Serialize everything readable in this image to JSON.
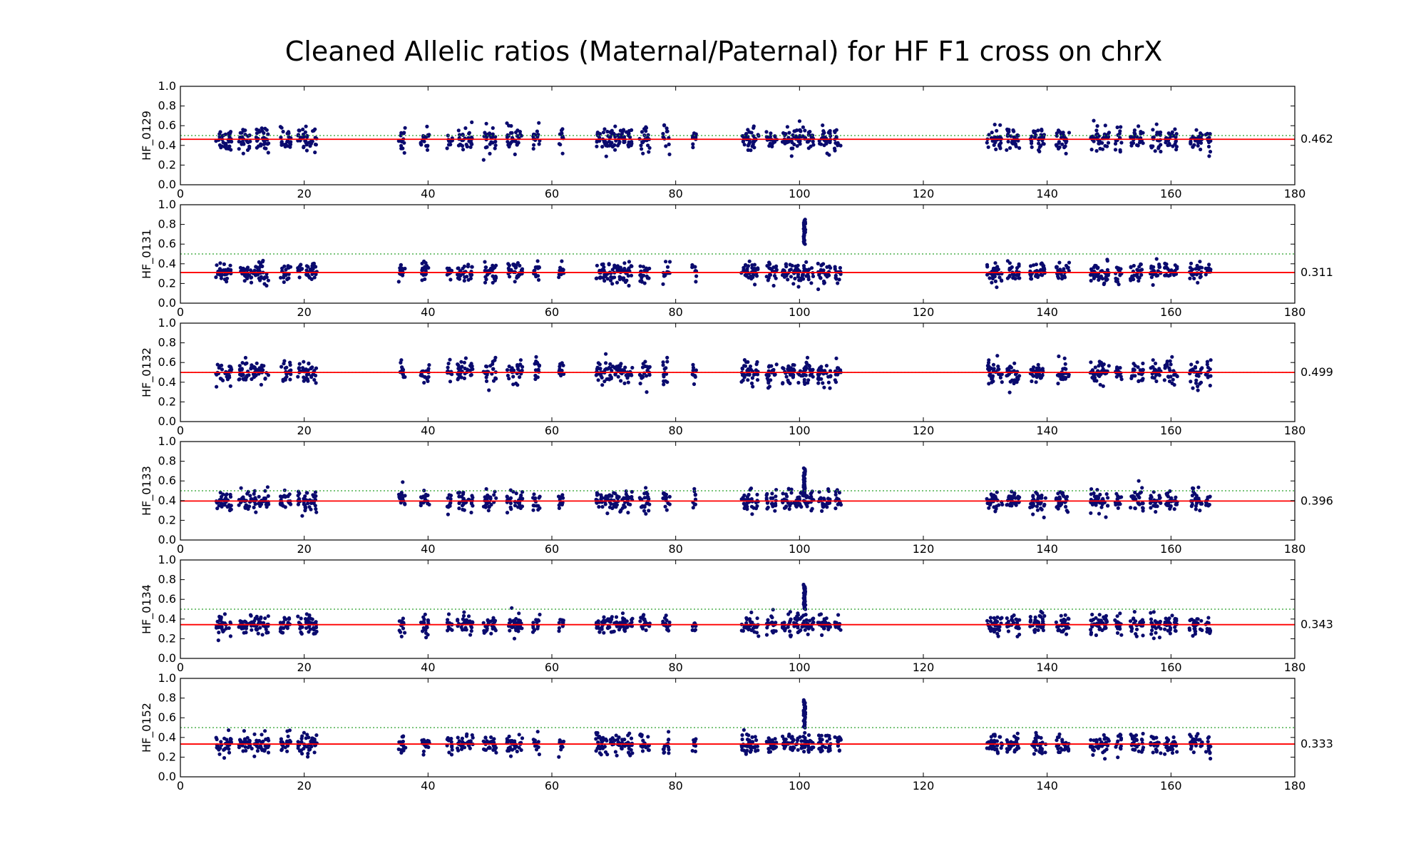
{
  "chart_data": {
    "type": "scatter",
    "title": "Cleaned Allelic ratios (Maternal/Paternal) for HF F1 cross on chrX",
    "xlim": [
      0,
      180
    ],
    "ylim": [
      0.0,
      1.0
    ],
    "xticks": [
      "0",
      "20",
      "40",
      "60",
      "80",
      "100",
      "120",
      "140",
      "160",
      "180"
    ],
    "yticks": [
      "0.0",
      "0.2",
      "0.4",
      "0.6",
      "0.8",
      "1.0"
    ],
    "reference_line": 0.5,
    "colors": {
      "points": "#0a0a6e",
      "mean_line": "#ff0000",
      "reference_line": "#2ca02c",
      "axes": "#000000"
    },
    "clusters": [
      {
        "x": 7,
        "w": 1.8
      },
      {
        "x": 10.5,
        "w": 1.5
      },
      {
        "x": 13,
        "w": 1.8
      },
      {
        "x": 17,
        "w": 1.2
      },
      {
        "x": 20.5,
        "w": 2.2
      },
      {
        "x": 35.8,
        "w": 0.8
      },
      {
        "x": 39.5,
        "w": 1.0
      },
      {
        "x": 43.5,
        "w": 0.6
      },
      {
        "x": 46,
        "w": 1.8
      },
      {
        "x": 50,
        "w": 1.5
      },
      {
        "x": 54,
        "w": 1.8
      },
      {
        "x": 57.5,
        "w": 0.8
      },
      {
        "x": 61.5,
        "w": 0.6
      },
      {
        "x": 68.5,
        "w": 2.0
      },
      {
        "x": 71.5,
        "w": 2.2
      },
      {
        "x": 75,
        "w": 1.2
      },
      {
        "x": 78.5,
        "w": 0.8
      },
      {
        "x": 83,
        "w": 0.5
      },
      {
        "x": 92,
        "w": 2.0
      },
      {
        "x": 95.5,
        "w": 1.2
      },
      {
        "x": 98.5,
        "w": 1.8
      },
      {
        "x": 101,
        "w": 1.8
      },
      {
        "x": 104,
        "w": 1.5
      },
      {
        "x": 106.2,
        "w": 0.8
      },
      {
        "x": 131.5,
        "w": 1.8
      },
      {
        "x": 134.5,
        "w": 1.5
      },
      {
        "x": 138.5,
        "w": 1.8
      },
      {
        "x": 142.5,
        "w": 1.5
      },
      {
        "x": 148.5,
        "w": 2.2
      },
      {
        "x": 151.5,
        "w": 0.8
      },
      {
        "x": 154.5,
        "w": 1.5
      },
      {
        "x": 157.5,
        "w": 1.2
      },
      {
        "x": 160,
        "w": 1.5
      },
      {
        "x": 164,
        "w": 1.5
      },
      {
        "x": 166,
        "w": 0.6
      }
    ],
    "series": [
      {
        "name": "HF_0129",
        "mean": 0.462,
        "mean_label": "0.462",
        "spread": 0.1,
        "spike": null
      },
      {
        "name": "HF_0131",
        "mean": 0.311,
        "mean_label": "0.311",
        "spread": 0.085,
        "spike": {
          "x": 100.8,
          "y0": 0.6,
          "y1": 0.85
        }
      },
      {
        "name": "HF_0132",
        "mean": 0.499,
        "mean_label": "0.499",
        "spread": 0.1,
        "spike": null
      },
      {
        "name": "HF_0133",
        "mean": 0.396,
        "mean_label": "0.396",
        "spread": 0.09,
        "spike": {
          "x": 100.8,
          "y0": 0.45,
          "y1": 0.73
        }
      },
      {
        "name": "HF_0134",
        "mean": 0.343,
        "mean_label": "0.343",
        "spread": 0.085,
        "spike": {
          "x": 100.8,
          "y0": 0.5,
          "y1": 0.75
        }
      },
      {
        "name": "HF_0152",
        "mean": 0.333,
        "mean_label": "0.333",
        "spread": 0.085,
        "spike": {
          "x": 100.8,
          "y0": 0.5,
          "y1": 0.78
        }
      }
    ]
  }
}
